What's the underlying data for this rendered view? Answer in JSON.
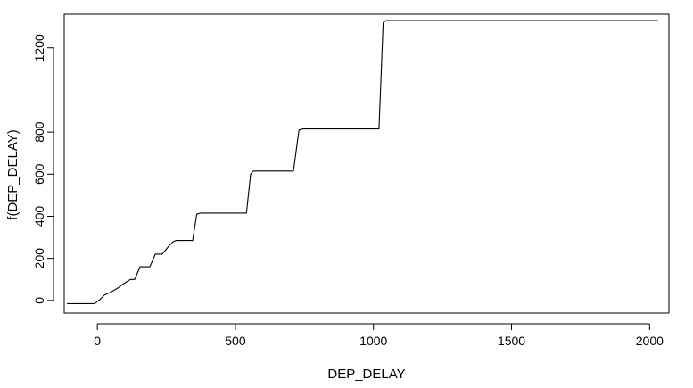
{
  "chart_data": {
    "type": "line",
    "title": "",
    "xlabel": "DEP_DELAY",
    "ylabel": "f(DEP_DELAY)",
    "xlim": [
      -120,
      2070
    ],
    "ylim": [
      -60,
      1360
    ],
    "x_ticks": [
      0,
      500,
      1000,
      1500,
      2000
    ],
    "y_ticks": [
      0,
      200,
      400,
      600,
      800,
      1200
    ],
    "grid": false,
    "legend": "none",
    "series": [
      {
        "name": "f(DEP_DELAY)",
        "x": [
          -110,
          -10,
          10,
          25,
          50,
          75,
          95,
          120,
          135,
          155,
          190,
          210,
          235,
          260,
          275,
          285,
          345,
          360,
          375,
          540,
          555,
          565,
          710,
          730,
          745,
          1020,
          1035,
          1045,
          2030
        ],
        "y": [
          -15,
          -15,
          5,
          25,
          40,
          60,
          80,
          100,
          100,
          160,
          160,
          220,
          220,
          260,
          280,
          285,
          285,
          410,
          415,
          415,
          600,
          615,
          615,
          810,
          815,
          815,
          1320,
          1330,
          1330
        ]
      }
    ]
  }
}
